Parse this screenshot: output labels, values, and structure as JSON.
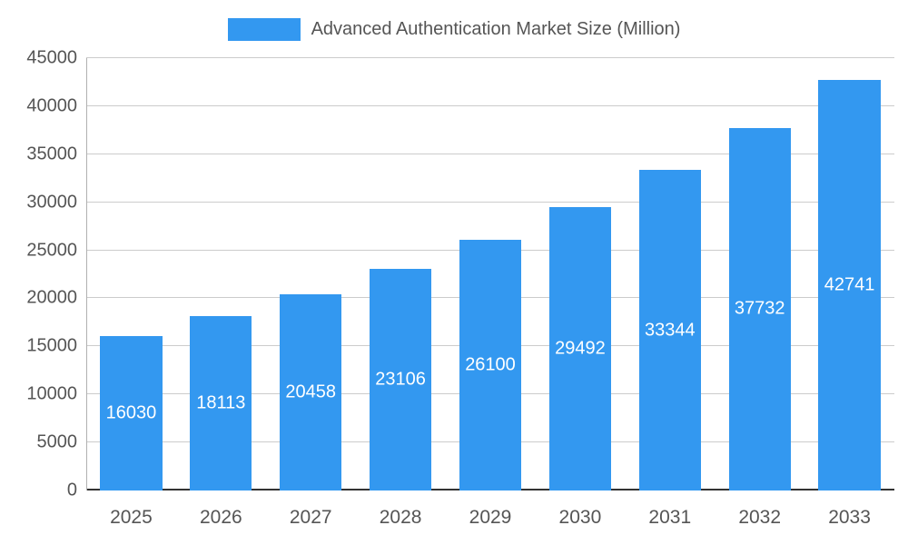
{
  "chart_data": {
    "type": "bar",
    "title": "Advanced Authentication Market Size (Million)",
    "categories": [
      "2025",
      "2026",
      "2027",
      "2028",
      "2029",
      "2030",
      "2031",
      "2032",
      "2033"
    ],
    "values": [
      16030,
      18113,
      20458,
      23106,
      26100,
      29492,
      33344,
      37732,
      42741
    ],
    "xlabel": "",
    "ylabel": "",
    "ylim": [
      0,
      45000
    ],
    "ytick_step": 5000,
    "grid": true,
    "legend_position": "top",
    "colors": {
      "bar": "#3398f0",
      "value_label": "#ffffff",
      "axis_text": "#555555",
      "gridline": "#cccccc",
      "baseline": "#333333"
    }
  }
}
